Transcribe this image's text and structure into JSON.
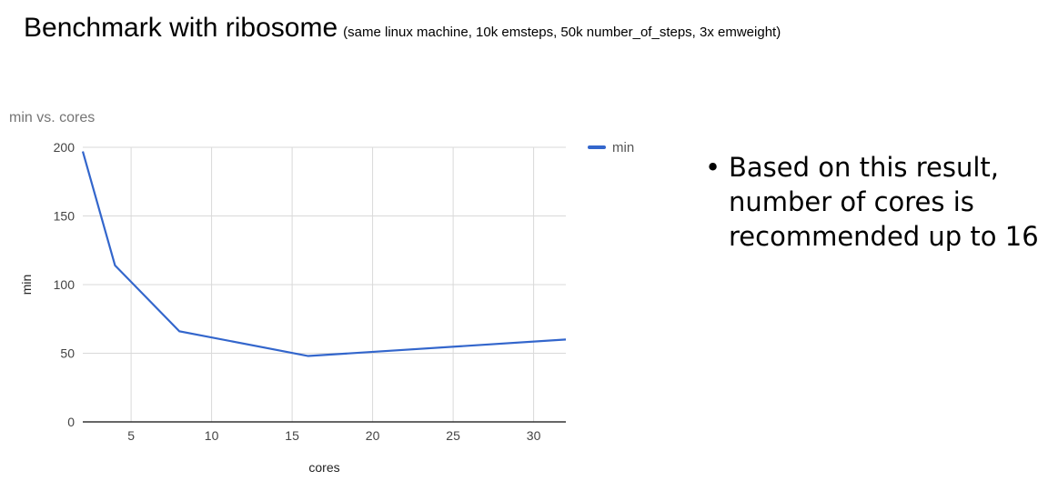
{
  "slide": {
    "title": "Benchmark with ribosome",
    "subtitle": "(same linux machine, 10k emsteps, 50k number_of_steps, 3x emweight)",
    "bullet": "Based on this result, number of cores is recommended up to 16"
  },
  "chart_data": {
    "type": "line",
    "title": "min vs. cores",
    "xlabel": "cores",
    "ylabel": "min",
    "xlim": [
      2,
      32
    ],
    "ylim": [
      0,
      200
    ],
    "xticks": [
      5,
      10,
      15,
      20,
      25,
      30
    ],
    "yticks": [
      0,
      50,
      100,
      150,
      200
    ],
    "grid": true,
    "legend": "top-right",
    "series": [
      {
        "name": "min",
        "color": "#3366cc",
        "x": [
          2,
          4,
          8,
          16,
          32
        ],
        "y": [
          197,
          114,
          66,
          48,
          60
        ]
      }
    ]
  }
}
